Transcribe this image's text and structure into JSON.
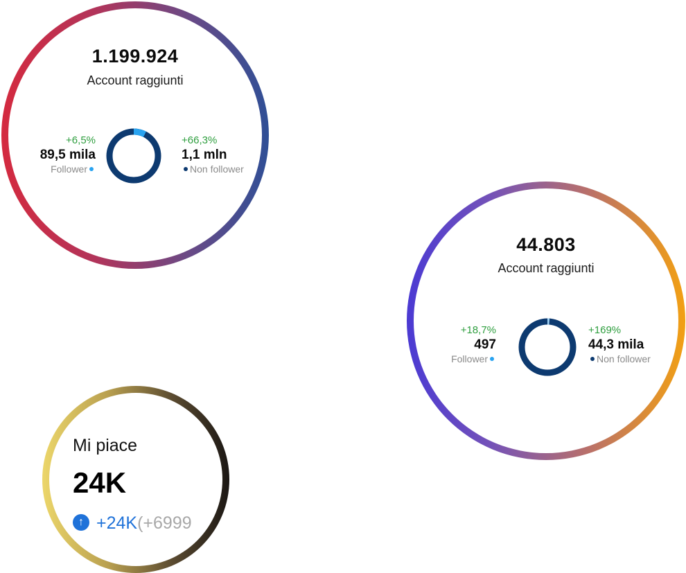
{
  "card_reach_1": {
    "total": "1.199.924",
    "label": "Account raggiunti",
    "followers": {
      "change": "+6,5%",
      "value": "89,5 mila",
      "label": "Follower"
    },
    "non_followers": {
      "change": "+66,3%",
      "value": "1,1 mln",
      "label": "Non follower"
    },
    "follower_share": 0.075,
    "colors": {
      "follower": "#29a3f0",
      "non_follower": "#0d3a70"
    }
  },
  "card_reach_2": {
    "total": "44.803",
    "label": "Account raggiunti",
    "followers": {
      "change": "+18,7%",
      "value": "497",
      "label": "Follower"
    },
    "non_followers": {
      "change": "+169%",
      "value": "44,3 mila",
      "label": "Non follower"
    },
    "follower_share": 0.012,
    "colors": {
      "follower": "#29a3f0",
      "non_follower": "#0d3a70"
    }
  },
  "card_likes": {
    "title": "Mi piace",
    "value": "24K",
    "delta": "+24K",
    "delta_detail": "(+6999",
    "icon": "arrow-up-circle-icon",
    "colors": {
      "accent": "#1f72d9"
    }
  }
}
